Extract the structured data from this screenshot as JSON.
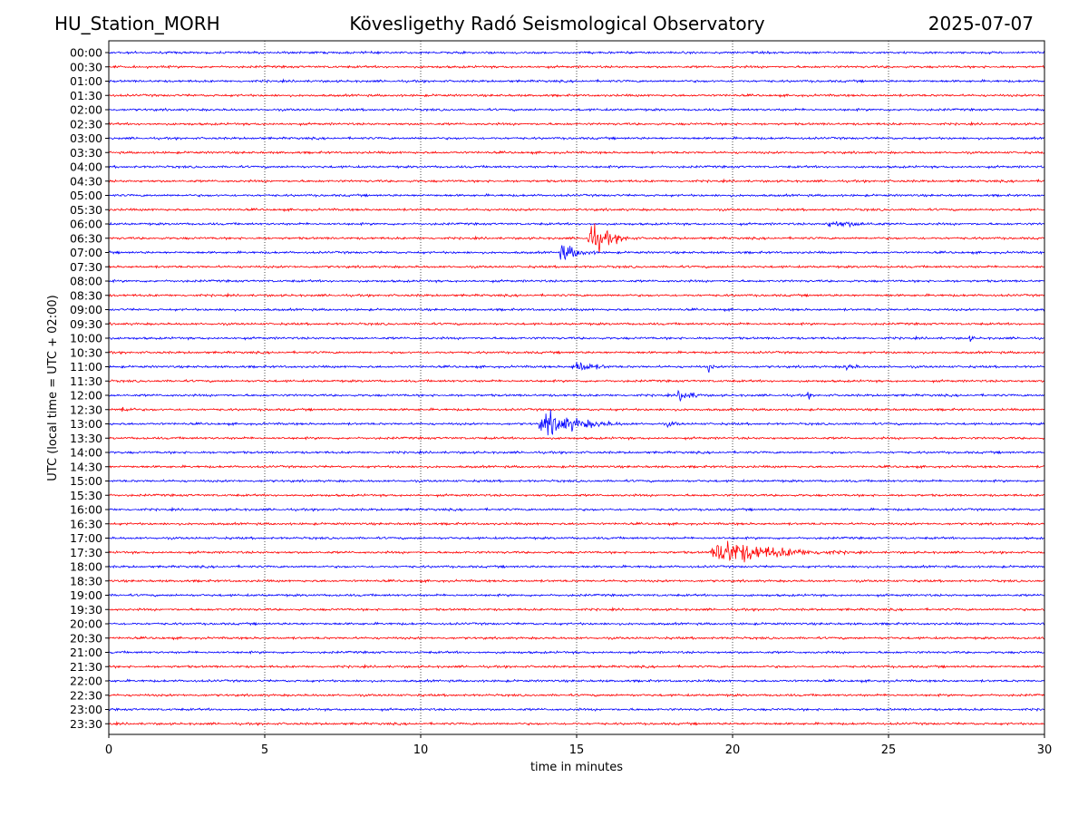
{
  "header": {
    "station": "HU_Station_MORH",
    "title": "Kövesligethy Radó Seismological Observatory",
    "date": "2025-07-07"
  },
  "chart_data": {
    "type": "line",
    "subtype": "helicorder",
    "xlabel": "time in minutes",
    "ylabel": "UTC (local time = UTC + 02:00)",
    "xlim": [
      0,
      30
    ],
    "xticks": [
      0,
      5,
      10,
      15,
      20,
      25,
      30
    ],
    "grid": "vertical dotted lines at x ticks",
    "colors": {
      "even_rows": "#0000ff",
      "odd_rows": "#ff0000",
      "grid": "#000000"
    },
    "rows": [
      "00:00",
      "00:30",
      "01:00",
      "01:30",
      "02:00",
      "02:30",
      "03:00",
      "03:30",
      "04:00",
      "04:30",
      "05:00",
      "05:30",
      "06:00",
      "06:30",
      "07:00",
      "07:30",
      "08:00",
      "08:30",
      "09:00",
      "09:30",
      "10:00",
      "10:30",
      "11:00",
      "11:30",
      "12:00",
      "12:30",
      "13:00",
      "13:30",
      "14:00",
      "14:30",
      "15:00",
      "15:30",
      "16:00",
      "16:30",
      "17:00",
      "17:30",
      "18:00",
      "18:30",
      "19:00",
      "19:30",
      "20:00",
      "20:30",
      "21:00",
      "21:30",
      "22:00",
      "22:30",
      "23:00",
      "23:30"
    ],
    "events": [
      {
        "row": "06:00",
        "start": 22.8,
        "end": 27.5,
        "amp": 4
      },
      {
        "row": "06:30",
        "start": 15.3,
        "end": 17.2,
        "amp": 17
      },
      {
        "row": "07:00",
        "start": 14.4,
        "end": 16.2,
        "amp": 10
      },
      {
        "row": "10:00",
        "start": 27.5,
        "end": 28.2,
        "amp": 4
      },
      {
        "row": "11:00",
        "start": 14.8,
        "end": 17.0,
        "amp": 7
      },
      {
        "row": "11:00",
        "start": 19.2,
        "end": 19.6,
        "amp": 6
      },
      {
        "row": "11:00",
        "start": 23.5,
        "end": 25.0,
        "amp": 4
      },
      {
        "row": "12:00",
        "start": 18.2,
        "end": 19.6,
        "amp": 8
      },
      {
        "row": "12:00",
        "start": 22.3,
        "end": 22.7,
        "amp": 8
      },
      {
        "row": "12:30",
        "start": 0.3,
        "end": 1.7,
        "amp": 4
      },
      {
        "row": "13:00",
        "start": 13.7,
        "end": 17.5,
        "amp": 13
      },
      {
        "row": "13:00",
        "start": 17.8,
        "end": 19.5,
        "amp": 3
      },
      {
        "row": "17:30",
        "start": 19.2,
        "end": 25.0,
        "amp": 14
      }
    ]
  }
}
